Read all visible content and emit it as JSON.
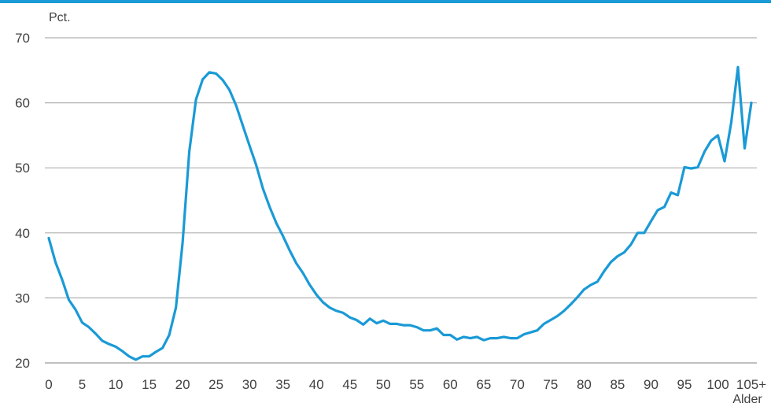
{
  "chart_data": {
    "type": "line",
    "title": "",
    "ylabel": "Pct.",
    "xlabel": "Alder",
    "ylim": [
      20,
      70
    ],
    "y_ticks": [
      "20",
      "30",
      "40",
      "50",
      "60",
      "70"
    ],
    "x_ticks": [
      "0",
      "5",
      "10",
      "15",
      "20",
      "25",
      "30",
      "35",
      "40",
      "45",
      "50",
      "55",
      "60",
      "65",
      "70",
      "75",
      "80",
      "85",
      "90",
      "95",
      "100",
      "105+"
    ],
    "grid": true,
    "legend": "none",
    "colors": {
      "line": "#1a9ad6",
      "grid": "#b0b0b0",
      "topbar": "#1a9ad6"
    },
    "series": [
      {
        "x": [
          0,
          1,
          2,
          3,
          4,
          5,
          6,
          7,
          8,
          9,
          10,
          11,
          12,
          13,
          14,
          15,
          16,
          17,
          18,
          19,
          20,
          21,
          22,
          23,
          24,
          25,
          26,
          27,
          28,
          29,
          30,
          31,
          32,
          33,
          34,
          35,
          36,
          37,
          38,
          39,
          40,
          41,
          42,
          43,
          44,
          45,
          46,
          47,
          48,
          49,
          50,
          51,
          52,
          53,
          54,
          55,
          56,
          57,
          58,
          59,
          60,
          61,
          62,
          63,
          64,
          65,
          66,
          67,
          68,
          69,
          70,
          71,
          72,
          73,
          74,
          75,
          76,
          77,
          78,
          79,
          80,
          81,
          82,
          83,
          84,
          85,
          86,
          87,
          88,
          89,
          90,
          91,
          92,
          93,
          94,
          95,
          96,
          97,
          98,
          99,
          100,
          101,
          102,
          103,
          104,
          105
        ],
        "values": [
          39.2,
          35.5,
          32.8,
          29.7,
          28.2,
          26.2,
          25.5,
          24.5,
          23.4,
          22.9,
          22.5,
          21.8,
          21.0,
          20.5,
          21.0,
          21.0,
          21.7,
          22.3,
          24.3,
          28.5,
          38.5,
          52.5,
          60.5,
          63.6,
          64.7,
          64.5,
          63.5,
          62.0,
          59.6,
          56.5,
          53.4,
          50.4,
          46.8,
          44.0,
          41.5,
          39.5,
          37.3,
          35.3,
          33.8,
          32.0,
          30.5,
          29.3,
          28.5,
          28.0,
          27.7,
          27.0,
          26.6,
          25.9,
          26.8,
          26.1,
          26.5,
          26.0,
          26.0,
          25.8,
          25.8,
          25.5,
          25.0,
          25.0,
          25.3,
          24.3,
          24.3,
          23.6,
          24.0,
          23.8,
          24.0,
          23.5,
          23.8,
          23.8,
          24.0,
          23.8,
          23.8,
          24.4,
          24.7,
          25.0,
          26.0,
          26.6,
          27.2,
          28.0,
          29.0,
          30.1,
          31.3,
          32.0,
          32.5,
          34.1,
          35.5,
          36.4,
          37.0,
          38.2,
          40.0,
          40.0,
          41.8,
          43.5,
          44.0,
          46.2,
          45.8,
          50.1,
          49.9,
          50.1,
          52.5,
          54.2,
          55.0,
          51.0,
          57.0,
          65.5,
          53.0,
          60.0
        ]
      }
    ]
  }
}
